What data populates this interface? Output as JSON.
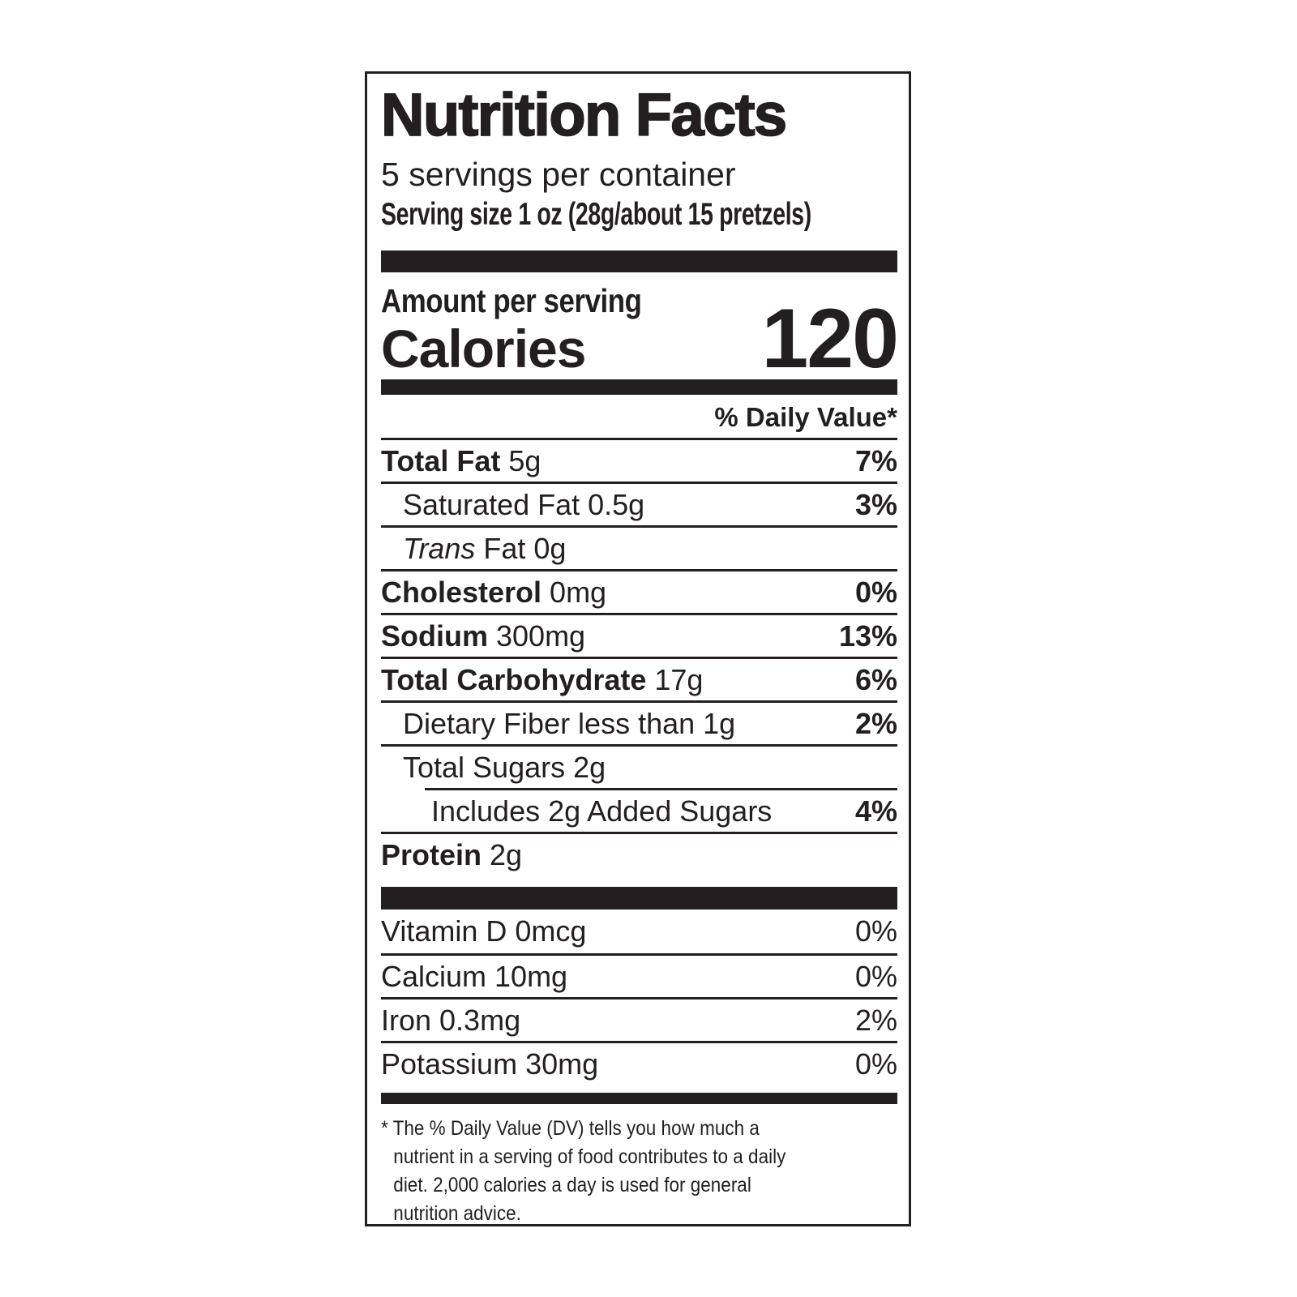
{
  "ink_color": "#231f20",
  "label": {
    "title": "Nutrition Facts",
    "servings_per_container": "5 servings per container",
    "serving_size": "Serving size 1 oz (28g/about 15 pretzels)",
    "amount_per_serving": "Amount per serving",
    "calories_label": "Calories",
    "calories_value": "120",
    "daily_value_header": "% Daily Value*",
    "nutrients": [
      {
        "parts": [
          {
            "text": "Total Fat",
            "style": "b"
          },
          {
            "text": " 5g",
            "style": "r"
          }
        ],
        "dv": "7%",
        "dv_bold": true,
        "indent": 0
      },
      {
        "parts": [
          {
            "text": "Saturated Fat 0.5g",
            "style": "r"
          }
        ],
        "dv": "3%",
        "dv_bold": true,
        "indent": 1
      },
      {
        "parts": [
          {
            "text": "Trans",
            "style": "i"
          },
          {
            "text": " Fat 0g",
            "style": "r"
          }
        ],
        "dv": "",
        "dv_bold": false,
        "indent": 1
      },
      {
        "parts": [
          {
            "text": "Cholesterol",
            "style": "b"
          },
          {
            "text": " 0mg",
            "style": "r"
          }
        ],
        "dv": "0%",
        "dv_bold": true,
        "indent": 0
      },
      {
        "parts": [
          {
            "text": "Sodium",
            "style": "b"
          },
          {
            "text": " 300mg",
            "style": "r"
          }
        ],
        "dv": "13%",
        "dv_bold": true,
        "indent": 0
      },
      {
        "parts": [
          {
            "text": "Total Carbohydrate",
            "style": "b"
          },
          {
            "text": " 17g",
            "style": "r"
          }
        ],
        "dv": "6%",
        "dv_bold": true,
        "indent": 0
      },
      {
        "parts": [
          {
            "text": "Dietary Fiber less than 1g",
            "style": "r"
          }
        ],
        "dv": "2%",
        "dv_bold": true,
        "indent": 1
      },
      {
        "parts": [
          {
            "text": "Total Sugars 2g",
            "style": "r"
          }
        ],
        "dv": "",
        "dv_bold": false,
        "indent": 1
      },
      {
        "parts": [
          {
            "text": "Includes 2g Added Sugars",
            "style": "r"
          }
        ],
        "dv": "4%",
        "dv_bold": true,
        "indent": 2,
        "separator_indented": true
      },
      {
        "parts": [
          {
            "text": "Protein",
            "style": "b"
          },
          {
            "text": " 2g",
            "style": "r"
          }
        ],
        "dv": "",
        "dv_bold": false,
        "indent": 0
      }
    ],
    "micronutrients": [
      {
        "name": "Vitamin D 0mcg",
        "dv": "0%"
      },
      {
        "name": "Calcium 10mg",
        "dv": "0%"
      },
      {
        "name": "Iron 0.3mg",
        "dv": "2%"
      },
      {
        "name": "Potassium 30mg",
        "dv": "0%"
      }
    ],
    "footnote_lines": [
      "* The % Daily Value (DV) tells you how much a",
      "nutrient in a serving of food contributes to a daily",
      "diet. 2,000 calories a day is used for general",
      "nutrition advice."
    ]
  }
}
